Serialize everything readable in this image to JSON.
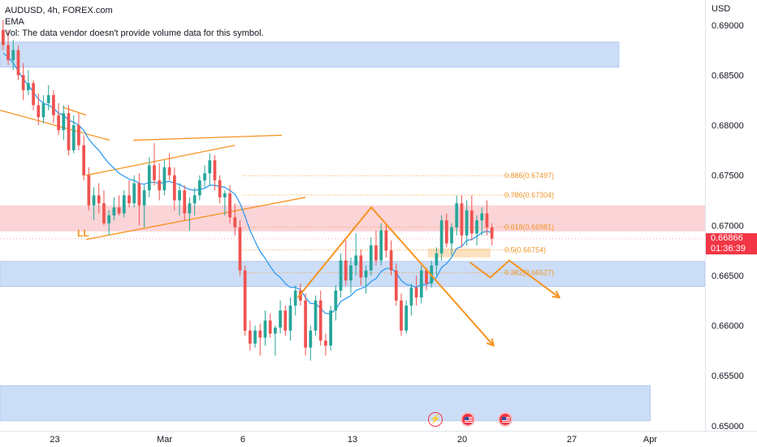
{
  "legend": {
    "symbol": "AUDUSD, 4h, FOREX.com",
    "indicator": "EMA",
    "volume_note": "Vol: The data vendor doesn't provide volume data for this symbol."
  },
  "price_axis": {
    "currency": "USD",
    "ticks": [
      "0.69000",
      "0.68500",
      "0.68000",
      "0.67500",
      "0.67000",
      "0.66500",
      "0.66000",
      "0.65500",
      "0.65000"
    ],
    "current_price": "0.66866",
    "countdown": "01:36:39"
  },
  "time_axis": {
    "ticks": [
      "23",
      "Mar",
      "6",
      "13",
      "20",
      "27",
      "Apr"
    ]
  },
  "annotations": {
    "pivot_label": "LL",
    "fib_levels": [
      "0.886(0.67497)",
      "0.786(0.67304)",
      "0.618(0.66981)",
      "0.5(0.66754)",
      "0.382(0.66527)"
    ]
  },
  "colors": {
    "up": "#26a69a",
    "down": "#ef5350",
    "ema": "#2196f3",
    "drawing": "#f7931e",
    "demand_zone": "#bcd2f5",
    "supply_zone": "#f9c6c9",
    "price_tag": "#f23645"
  },
  "event_icons": [
    "flash-icon",
    "us-flag-icon",
    "us-flag-icon"
  ],
  "chart_data": {
    "type": "candlestick",
    "symbol": "AUDUSD",
    "timeframe": "4h",
    "ylim": [
      0.6495,
      0.6925
    ],
    "x_range_days": [
      -9.5,
      35.5
    ],
    "x_ticks": [
      {
        "label": "23",
        "day": -6
      },
      {
        "label": "Mar",
        "day": 1
      },
      {
        "label": "6",
        "day": 6
      },
      {
        "label": "13",
        "day": 13
      },
      {
        "label": "20",
        "day": 20
      },
      {
        "label": "27",
        "day": 27
      },
      {
        "label": "Apr",
        "day": 32
      }
    ],
    "candles": [
      [
        0.6895,
        0.6905,
        0.6875,
        0.688
      ],
      [
        0.688,
        0.6895,
        0.686,
        0.6865
      ],
      [
        0.6865,
        0.6885,
        0.6855,
        0.6875
      ],
      [
        0.6875,
        0.688,
        0.6845,
        0.685
      ],
      [
        0.685,
        0.6862,
        0.6825,
        0.6835
      ],
      [
        0.6835,
        0.6855,
        0.683,
        0.6842
      ],
      [
        0.6842,
        0.6845,
        0.6815,
        0.682
      ],
      [
        0.682,
        0.6832,
        0.68,
        0.6808
      ],
      [
        0.6808,
        0.683,
        0.6802,
        0.6822
      ],
      [
        0.6822,
        0.684,
        0.6815,
        0.683
      ],
      [
        0.683,
        0.6835,
        0.6802,
        0.681
      ],
      [
        0.681,
        0.6822,
        0.679,
        0.6795
      ],
      [
        0.6795,
        0.682,
        0.6785,
        0.6812
      ],
      [
        0.6812,
        0.682,
        0.677,
        0.6775
      ],
      [
        0.6775,
        0.681,
        0.6772,
        0.68
      ],
      [
        0.68,
        0.6812,
        0.6775,
        0.678
      ],
      [
        0.678,
        0.679,
        0.6745,
        0.675
      ],
      [
        0.675,
        0.6758,
        0.6715,
        0.672
      ],
      [
        0.672,
        0.6738,
        0.6705,
        0.673
      ],
      [
        0.673,
        0.6742,
        0.6712,
        0.6722
      ],
      [
        0.6722,
        0.6735,
        0.67,
        0.6702
      ],
      [
        0.6702,
        0.6715,
        0.669,
        0.671
      ],
      [
        0.671,
        0.6728,
        0.6705,
        0.6718
      ],
      [
        0.6718,
        0.673,
        0.671,
        0.6712
      ],
      [
        0.6712,
        0.6735,
        0.6708,
        0.673
      ],
      [
        0.673,
        0.6745,
        0.6718,
        0.6722
      ],
      [
        0.6722,
        0.675,
        0.6718,
        0.6742
      ],
      [
        0.6742,
        0.6752,
        0.67,
        0.672
      ],
      [
        0.672,
        0.674,
        0.6698,
        0.6735
      ],
      [
        0.6735,
        0.6768,
        0.6728,
        0.676
      ],
      [
        0.676,
        0.6782,
        0.674,
        0.6745
      ],
      [
        0.6745,
        0.6762,
        0.6725,
        0.6735
      ],
      [
        0.6735,
        0.6765,
        0.673,
        0.6758
      ],
      [
        0.6758,
        0.6772,
        0.6745,
        0.675
      ],
      [
        0.675,
        0.6758,
        0.6715,
        0.6725
      ],
      [
        0.6725,
        0.6742,
        0.671,
        0.6735
      ],
      [
        0.6735,
        0.674,
        0.6705,
        0.6712
      ],
      [
        0.6712,
        0.6728,
        0.6695,
        0.6722
      ],
      [
        0.6722,
        0.6738,
        0.671,
        0.673
      ],
      [
        0.673,
        0.675,
        0.6725,
        0.6745
      ],
      [
        0.6745,
        0.676,
        0.6738,
        0.6752
      ],
      [
        0.6752,
        0.6772,
        0.674,
        0.6765
      ],
      [
        0.6765,
        0.677,
        0.6735,
        0.6745
      ],
      [
        0.6745,
        0.675,
        0.6722,
        0.6728
      ],
      [
        0.6728,
        0.6735,
        0.671,
        0.6732
      ],
      [
        0.6732,
        0.674,
        0.6702,
        0.6708
      ],
      [
        0.6708,
        0.6722,
        0.669,
        0.6698
      ],
      [
        0.6698,
        0.6705,
        0.665,
        0.6655
      ],
      [
        0.6655,
        0.666,
        0.659,
        0.6595
      ],
      [
        0.6595,
        0.6605,
        0.6575,
        0.6582
      ],
      [
        0.6582,
        0.66,
        0.6578,
        0.6595
      ],
      [
        0.6595,
        0.6602,
        0.657,
        0.6588
      ],
      [
        0.6588,
        0.6615,
        0.658,
        0.6605
      ],
      [
        0.6605,
        0.6612,
        0.6588,
        0.6592
      ],
      [
        0.6592,
        0.66,
        0.657,
        0.6598
      ],
      [
        0.6598,
        0.6625,
        0.6592,
        0.6615
      ],
      [
        0.6615,
        0.662,
        0.659,
        0.6595
      ],
      [
        0.6595,
        0.6628,
        0.6585,
        0.662
      ],
      [
        0.662,
        0.664,
        0.661,
        0.6635
      ],
      [
        0.6635,
        0.6642,
        0.662,
        0.6625
      ],
      [
        0.6625,
        0.6632,
        0.657,
        0.6578
      ],
      [
        0.6578,
        0.66,
        0.6565,
        0.6595
      ],
      [
        0.6595,
        0.663,
        0.659,
        0.6625
      ],
      [
        0.6625,
        0.6635,
        0.658,
        0.6585
      ],
      [
        0.6585,
        0.6592,
        0.657,
        0.658
      ],
      [
        0.658,
        0.662,
        0.6575,
        0.6615
      ],
      [
        0.6615,
        0.664,
        0.6605,
        0.6635
      ],
      [
        0.6635,
        0.6672,
        0.6628,
        0.6665
      ],
      [
        0.6665,
        0.6685,
        0.664,
        0.6645
      ],
      [
        0.6645,
        0.6668,
        0.6632,
        0.666
      ],
      [
        0.666,
        0.6692,
        0.665,
        0.667
      ],
      [
        0.667,
        0.6676,
        0.664,
        0.6648
      ],
      [
        0.6648,
        0.666,
        0.6632,
        0.6655
      ],
      [
        0.6655,
        0.6688,
        0.665,
        0.668
      ],
      [
        0.668,
        0.6695,
        0.666,
        0.6665
      ],
      [
        0.6665,
        0.6702,
        0.666,
        0.6695
      ],
      [
        0.6695,
        0.6702,
        0.6668,
        0.6675
      ],
      [
        0.6675,
        0.6685,
        0.665,
        0.6655
      ],
      [
        0.6655,
        0.6662,
        0.662,
        0.6625
      ],
      [
        0.6625,
        0.6632,
        0.659,
        0.6595
      ],
      [
        0.6595,
        0.6625,
        0.6592,
        0.662
      ],
      [
        0.662,
        0.6642,
        0.661,
        0.6638
      ],
      [
        0.6638,
        0.665,
        0.662,
        0.6628
      ],
      [
        0.6628,
        0.666,
        0.6622,
        0.6655
      ],
      [
        0.6655,
        0.6658,
        0.6635,
        0.6642
      ],
      [
        0.6642,
        0.6665,
        0.6638,
        0.666
      ],
      [
        0.666,
        0.6678,
        0.665,
        0.6672
      ],
      [
        0.6672,
        0.671,
        0.6665,
        0.6705
      ],
      [
        0.6705,
        0.6712,
        0.6678,
        0.6682
      ],
      [
        0.6682,
        0.6702,
        0.667,
        0.6698
      ],
      [
        0.6698,
        0.673,
        0.669,
        0.6722
      ],
      [
        0.6722,
        0.673,
        0.6678,
        0.669
      ],
      [
        0.669,
        0.6725,
        0.668,
        0.6715
      ],
      [
        0.6715,
        0.673,
        0.6685,
        0.6692
      ],
      [
        0.6692,
        0.671,
        0.668,
        0.6705
      ],
      [
        0.6705,
        0.6718,
        0.669,
        0.6712
      ],
      [
        0.6712,
        0.6725,
        0.669,
        0.6698
      ],
      [
        0.6698,
        0.6702,
        0.668,
        0.6687
      ]
    ],
    "ema": [
      0.6872,
      0.6868,
      0.6862,
      0.6854,
      0.6846,
      0.684,
      0.6833,
      0.6826,
      0.6822,
      0.682,
      0.6817,
      0.6812,
      0.681,
      0.6805,
      0.6803,
      0.68,
      0.6795,
      0.6786,
      0.678,
      0.6775,
      0.6768,
      0.6762,
      0.6757,
      0.6752,
      0.6749,
      0.6746,
      0.6745,
      0.6742,
      0.6741,
      0.6743,
      0.6743,
      0.6742,
      0.6743,
      0.6744,
      0.6742,
      0.6741,
      0.6738,
      0.6736,
      0.6735,
      0.6736,
      0.6737,
      0.674,
      0.674,
      0.6739,
      0.6738,
      0.6735,
      0.6731,
      0.6722,
      0.6709,
      0.6695,
      0.6684,
      0.6674,
      0.6667,
      0.6659,
      0.6652,
      0.6648,
      0.6642,
      0.6638,
      0.6638,
      0.6636,
      0.6628,
      0.6622,
      0.6622,
      0.6617,
      0.6612,
      0.6612,
      0.6616,
      0.6624,
      0.6627,
      0.663,
      0.6635,
      0.6637,
      0.6639,
      0.6644,
      0.6647,
      0.6654,
      0.6657,
      0.6657,
      0.6653,
      0.6645,
      0.6641,
      0.664,
      0.6638,
      0.6641,
      0.6641,
      0.6644,
      0.6648,
      0.6658,
      0.6662,
      0.6668,
      0.6677,
      0.6679,
      0.6685,
      0.6686,
      0.6689,
      0.6693,
      0.6694,
      0.6693
    ],
    "fibonacci": [
      {
        "ratio": 0.886,
        "price": 0.67497
      },
      {
        "ratio": 0.786,
        "price": 0.67304
      },
      {
        "ratio": 0.618,
        "price": 0.66981
      },
      {
        "ratio": 0.5,
        "price": 0.66754
      },
      {
        "ratio": 0.382,
        "price": 0.66527
      }
    ],
    "zones": [
      {
        "kind": "demand",
        "from_day": -9.5,
        "to_day": 30,
        "low": 0.6858,
        "high": 0.6883
      },
      {
        "kind": "supply",
        "from_day": -9.5,
        "to_day": 35.5,
        "low": 0.6694,
        "high": 0.672
      },
      {
        "kind": "current",
        "from_day": 17.8,
        "to_day": 21.8,
        "low": 0.6668,
        "high": 0.6677
      },
      {
        "kind": "demand",
        "from_day": -9.5,
        "to_day": 35.5,
        "low": 0.6639,
        "high": 0.6664
      },
      {
        "kind": "demand",
        "from_day": -9.5,
        "to_day": 32,
        "low": 0.6505,
        "high": 0.654
      }
    ],
    "trendlines": [
      {
        "points": [
          [
            -5.5,
            0.6818
          ],
          [
            -4,
            0.681
          ]
        ]
      },
      {
        "points": [
          [
            -9.5,
            0.6815
          ],
          [
            -2.5,
            0.6785
          ]
        ]
      },
      {
        "points": [
          [
            -4,
            0.675
          ],
          [
            5.5,
            0.678
          ]
        ]
      },
      {
        "points": [
          [
            -4,
            0.6686
          ],
          [
            10,
            0.6728
          ]
        ]
      },
      {
        "points": [
          [
            -1,
            0.6785
          ],
          [
            8.5,
            0.679
          ]
        ]
      }
    ],
    "projection_paths": [
      [
        [
          9.5,
          0.6628
        ],
        [
          14.2,
          0.6718
        ],
        [
          22,
          0.658
        ]
      ],
      [
        [
          20.5,
          0.6663
        ],
        [
          21.8,
          0.6648
        ],
        [
          23,
          0.6665
        ],
        [
          26.2,
          0.6628
        ]
      ]
    ],
    "current_price": 0.66866
  }
}
